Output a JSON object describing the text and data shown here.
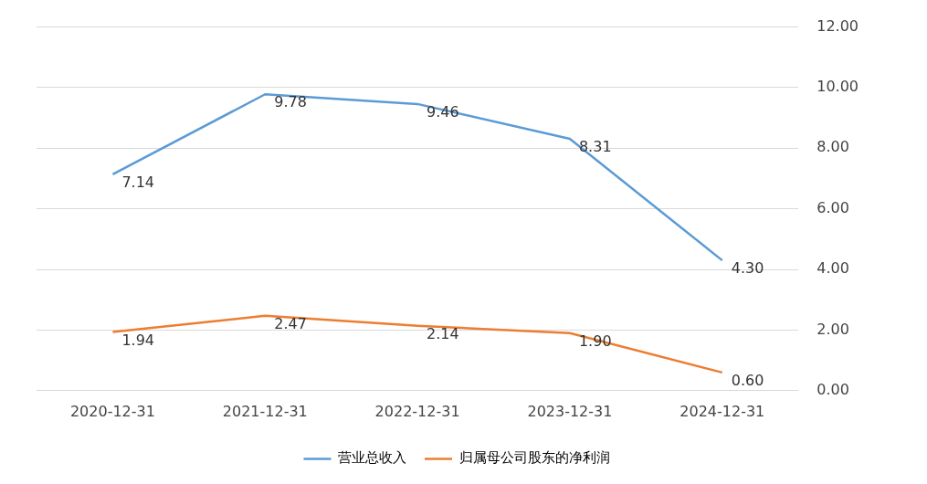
{
  "chart_data": {
    "type": "line",
    "categories": [
      "2020-12-31",
      "2021-12-31",
      "2022-12-31",
      "2023-12-31",
      "2024-12-31"
    ],
    "series": [
      {
        "name": "营业总收入",
        "color": "#5b9bd5",
        "values": [
          7.14,
          9.78,
          9.46,
          8.31,
          4.3
        ],
        "value_labels": [
          "7.14",
          "9.78",
          "9.46",
          "8.31",
          "4.30"
        ]
      },
      {
        "name": "归属母公司股东的净利润",
        "color": "#ed7d31",
        "values": [
          1.94,
          2.47,
          2.14,
          1.9,
          0.6
        ],
        "value_labels": [
          "1.94",
          "2.47",
          "2.14",
          "1.90",
          "0.60"
        ]
      }
    ],
    "ylim": [
      0,
      12
    ],
    "yticks": [
      {
        "value": 0,
        "label": "0.00"
      },
      {
        "value": 2,
        "label": "2.00"
      },
      {
        "value": 4,
        "label": "4.00"
      },
      {
        "value": 6,
        "label": "6.00"
      },
      {
        "value": 8,
        "label": "8.00"
      },
      {
        "value": 10,
        "label": "10.00"
      },
      {
        "value": 12,
        "label": "12.00"
      }
    ],
    "grid": "y",
    "legend": "bottom",
    "marker": "none",
    "line_style": "solid"
  }
}
